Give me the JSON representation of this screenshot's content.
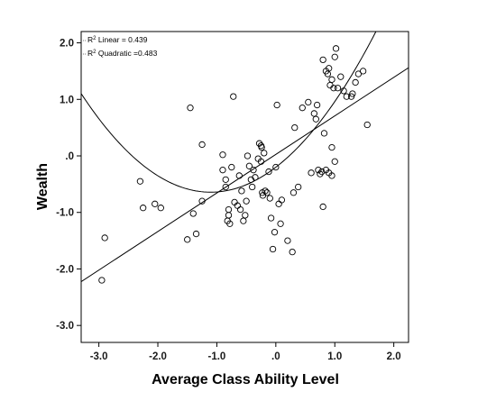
{
  "chart_data": {
    "type": "scatter",
    "xlabel": "Average Class Ability Level",
    "ylabel": "Wealth",
    "xlim": [
      -3.3,
      2.25
    ],
    "ylim": [
      -3.3,
      2.2
    ],
    "x_ticks": [
      -3.0,
      -2.0,
      -1.0,
      0.0,
      1.0,
      2.0
    ],
    "x_tick_labels": [
      "-3.0",
      "-2.0",
      "-1.0",
      ".0",
      "1.0",
      "2.0"
    ],
    "y_ticks": [
      -3.0,
      -2.0,
      -1.0,
      0.0,
      1.0,
      2.0
    ],
    "y_tick_labels": [
      "-3.0",
      "-2.0",
      "-1.0",
      ".0",
      "1.0",
      "2.0"
    ],
    "grid": false,
    "legend": {
      "placement": "top-left",
      "linear": {
        "prefix": "R",
        "sup": "2",
        "text": " Linear = 0.439"
      },
      "quadratic": {
        "prefix": "R",
        "sup": "2",
        "text": " Quadratic =0.483"
      }
    },
    "fits": {
      "linear": {
        "intercept": 0.026,
        "slope": 0.682,
        "r2": 0.439
      },
      "quadratic": {
        "a": 0.362,
        "b": 0.8,
        "c": -0.2,
        "r2": 0.483
      }
    },
    "series": [
      {
        "marker": "open-circle",
        "x": [
          -2.95,
          -2.9,
          -2.3,
          -2.25,
          -2.05,
          -1.95,
          -1.5,
          -1.45,
          -1.4,
          -1.35,
          -1.25,
          -1.25,
          -0.9,
          -0.9,
          -0.85,
          -0.85,
          -0.82,
          -0.8,
          -0.8,
          -0.78,
          -0.75,
          -0.72,
          -0.7,
          -0.65,
          -0.62,
          -0.6,
          -0.58,
          -0.55,
          -0.52,
          -0.5,
          -0.48,
          -0.45,
          -0.42,
          -0.4,
          -0.38,
          -0.35,
          -0.3,
          -0.28,
          -0.25,
          -0.25,
          -0.24,
          -0.23,
          -0.22,
          -0.2,
          -0.18,
          -0.15,
          -0.12,
          -0.1,
          -0.08,
          -0.05,
          -0.02,
          0.0,
          0.02,
          0.05,
          0.08,
          0.1,
          0.2,
          0.28,
          0.3,
          0.32,
          0.38,
          0.45,
          0.55,
          0.6,
          0.65,
          0.68,
          0.7,
          0.72,
          0.75,
          0.78,
          0.8,
          0.82,
          0.85,
          0.88,
          0.9,
          0.92,
          0.95,
          0.95,
          0.98,
          1.0,
          1.02,
          1.05,
          1.1,
          1.15,
          1.2,
          1.28,
          1.3,
          1.35,
          1.4,
          1.48,
          1.55,
          0.8,
          0.85,
          0.9,
          0.95,
          1.0
        ],
        "y": [
          -2.2,
          -1.45,
          -0.45,
          -0.92,
          -0.85,
          -0.92,
          -1.48,
          0.85,
          -1.02,
          -1.38,
          0.2,
          -0.8,
          -0.25,
          0.02,
          -0.42,
          -0.55,
          -1.15,
          -0.95,
          -1.05,
          -1.2,
          -0.2,
          1.05,
          -0.82,
          -0.88,
          -0.35,
          -0.95,
          -0.62,
          -1.15,
          -1.05,
          -0.8,
          0.0,
          -0.18,
          -0.42,
          -0.55,
          -0.25,
          -0.38,
          -0.05,
          0.22,
          0.18,
          -0.1,
          0.15,
          -0.65,
          -0.7,
          0.05,
          -0.62,
          -0.65,
          -0.28,
          -0.75,
          -1.1,
          -1.65,
          -1.35,
          -0.2,
          0.9,
          -0.85,
          -1.2,
          -0.78,
          -1.5,
          -1.7,
          -0.65,
          0.5,
          -0.55,
          0.85,
          0.95,
          -0.3,
          0.75,
          0.65,
          0.9,
          -0.25,
          -0.32,
          -0.28,
          1.7,
          0.4,
          1.5,
          1.45,
          1.55,
          1.25,
          1.35,
          0.15,
          1.2,
          1.75,
          1.9,
          1.2,
          1.4,
          1.15,
          1.05,
          1.05,
          1.1,
          1.3,
          1.45,
          1.5,
          0.55,
          -0.9,
          -0.25,
          -0.3,
          -0.35,
          -0.1
        ]
      }
    ]
  }
}
